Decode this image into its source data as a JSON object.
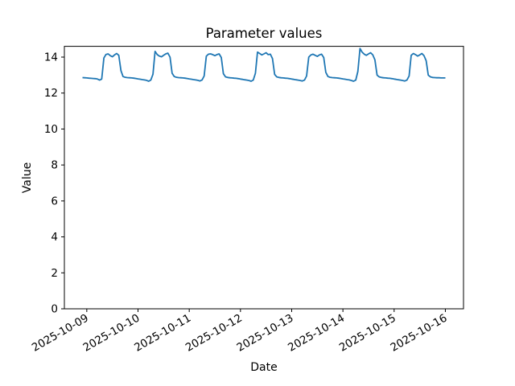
{
  "chart_data": {
    "type": "line",
    "title": "Parameter values",
    "xlabel": "Date",
    "ylabel": "Value",
    "grid": false,
    "legend": "none",
    "ylim": [
      0,
      14.6
    ],
    "xlim_hours": [
      -10.5,
      176.5
    ],
    "y_ticks": [
      0,
      2,
      4,
      6,
      8,
      10,
      12,
      14
    ],
    "x_ticks": [
      {
        "label": "2025-10-09",
        "hour": 0
      },
      {
        "label": "2025-10-10",
        "hour": 24
      },
      {
        "label": "2025-10-11",
        "hour": 48
      },
      {
        "label": "2025-10-12",
        "hour": 72
      },
      {
        "label": "2025-10-13",
        "hour": 96
      },
      {
        "label": "2025-10-14",
        "hour": 120
      },
      {
        "label": "2025-10-15",
        "hour": 144
      },
      {
        "label": "2025-10-16",
        "hour": 168
      }
    ],
    "x_hours_start": -2,
    "x_hours_step": 1,
    "series": [
      {
        "name": "Parameter",
        "color": "#1f77b4",
        "values": [
          12.86,
          12.85,
          12.84,
          12.83,
          12.82,
          12.81,
          12.8,
          12.78,
          12.72,
          12.78,
          13.95,
          14.15,
          14.18,
          14.08,
          14.02,
          14.12,
          14.2,
          14.1,
          13.25,
          12.92,
          12.88,
          12.86,
          12.85,
          12.84,
          12.83,
          12.81,
          12.79,
          12.77,
          12.75,
          12.73,
          12.71,
          12.66,
          12.72,
          13.05,
          14.32,
          14.14,
          14.06,
          14.02,
          14.1,
          14.18,
          14.22,
          14.0,
          13.1,
          12.92,
          12.88,
          12.86,
          12.85,
          12.84,
          12.83,
          12.81,
          12.79,
          12.77,
          12.75,
          12.73,
          12.71,
          12.67,
          12.73,
          12.95,
          14.05,
          14.16,
          14.18,
          14.14,
          14.08,
          14.14,
          14.18,
          13.98,
          13.08,
          12.9,
          12.87,
          12.85,
          12.84,
          12.83,
          12.82,
          12.8,
          12.78,
          12.76,
          12.74,
          12.72,
          12.7,
          12.66,
          12.72,
          13.1,
          14.28,
          14.2,
          14.12,
          14.18,
          14.24,
          14.14,
          14.16,
          13.92,
          13.04,
          12.9,
          12.87,
          12.85,
          12.84,
          12.83,
          12.82,
          12.8,
          12.78,
          12.76,
          12.74,
          12.72,
          12.7,
          12.67,
          12.72,
          12.95,
          14.0,
          14.12,
          14.16,
          14.1,
          14.04,
          14.12,
          14.16,
          13.98,
          13.15,
          12.92,
          12.88,
          12.86,
          12.85,
          12.84,
          12.83,
          12.81,
          12.79,
          12.77,
          12.75,
          12.73,
          12.7,
          12.66,
          12.72,
          13.2,
          14.48,
          14.28,
          14.16,
          14.1,
          14.18,
          14.24,
          14.12,
          13.85,
          13.0,
          12.9,
          12.87,
          12.85,
          12.84,
          12.83,
          12.82,
          12.8,
          12.78,
          12.76,
          12.74,
          12.72,
          12.7,
          12.67,
          12.72,
          12.95,
          14.1,
          14.2,
          14.14,
          14.06,
          14.12,
          14.2,
          14.08,
          13.8,
          13.0,
          12.9,
          12.87,
          12.86,
          12.85,
          12.85,
          12.84,
          12.84,
          12.84
        ]
      }
    ]
  }
}
